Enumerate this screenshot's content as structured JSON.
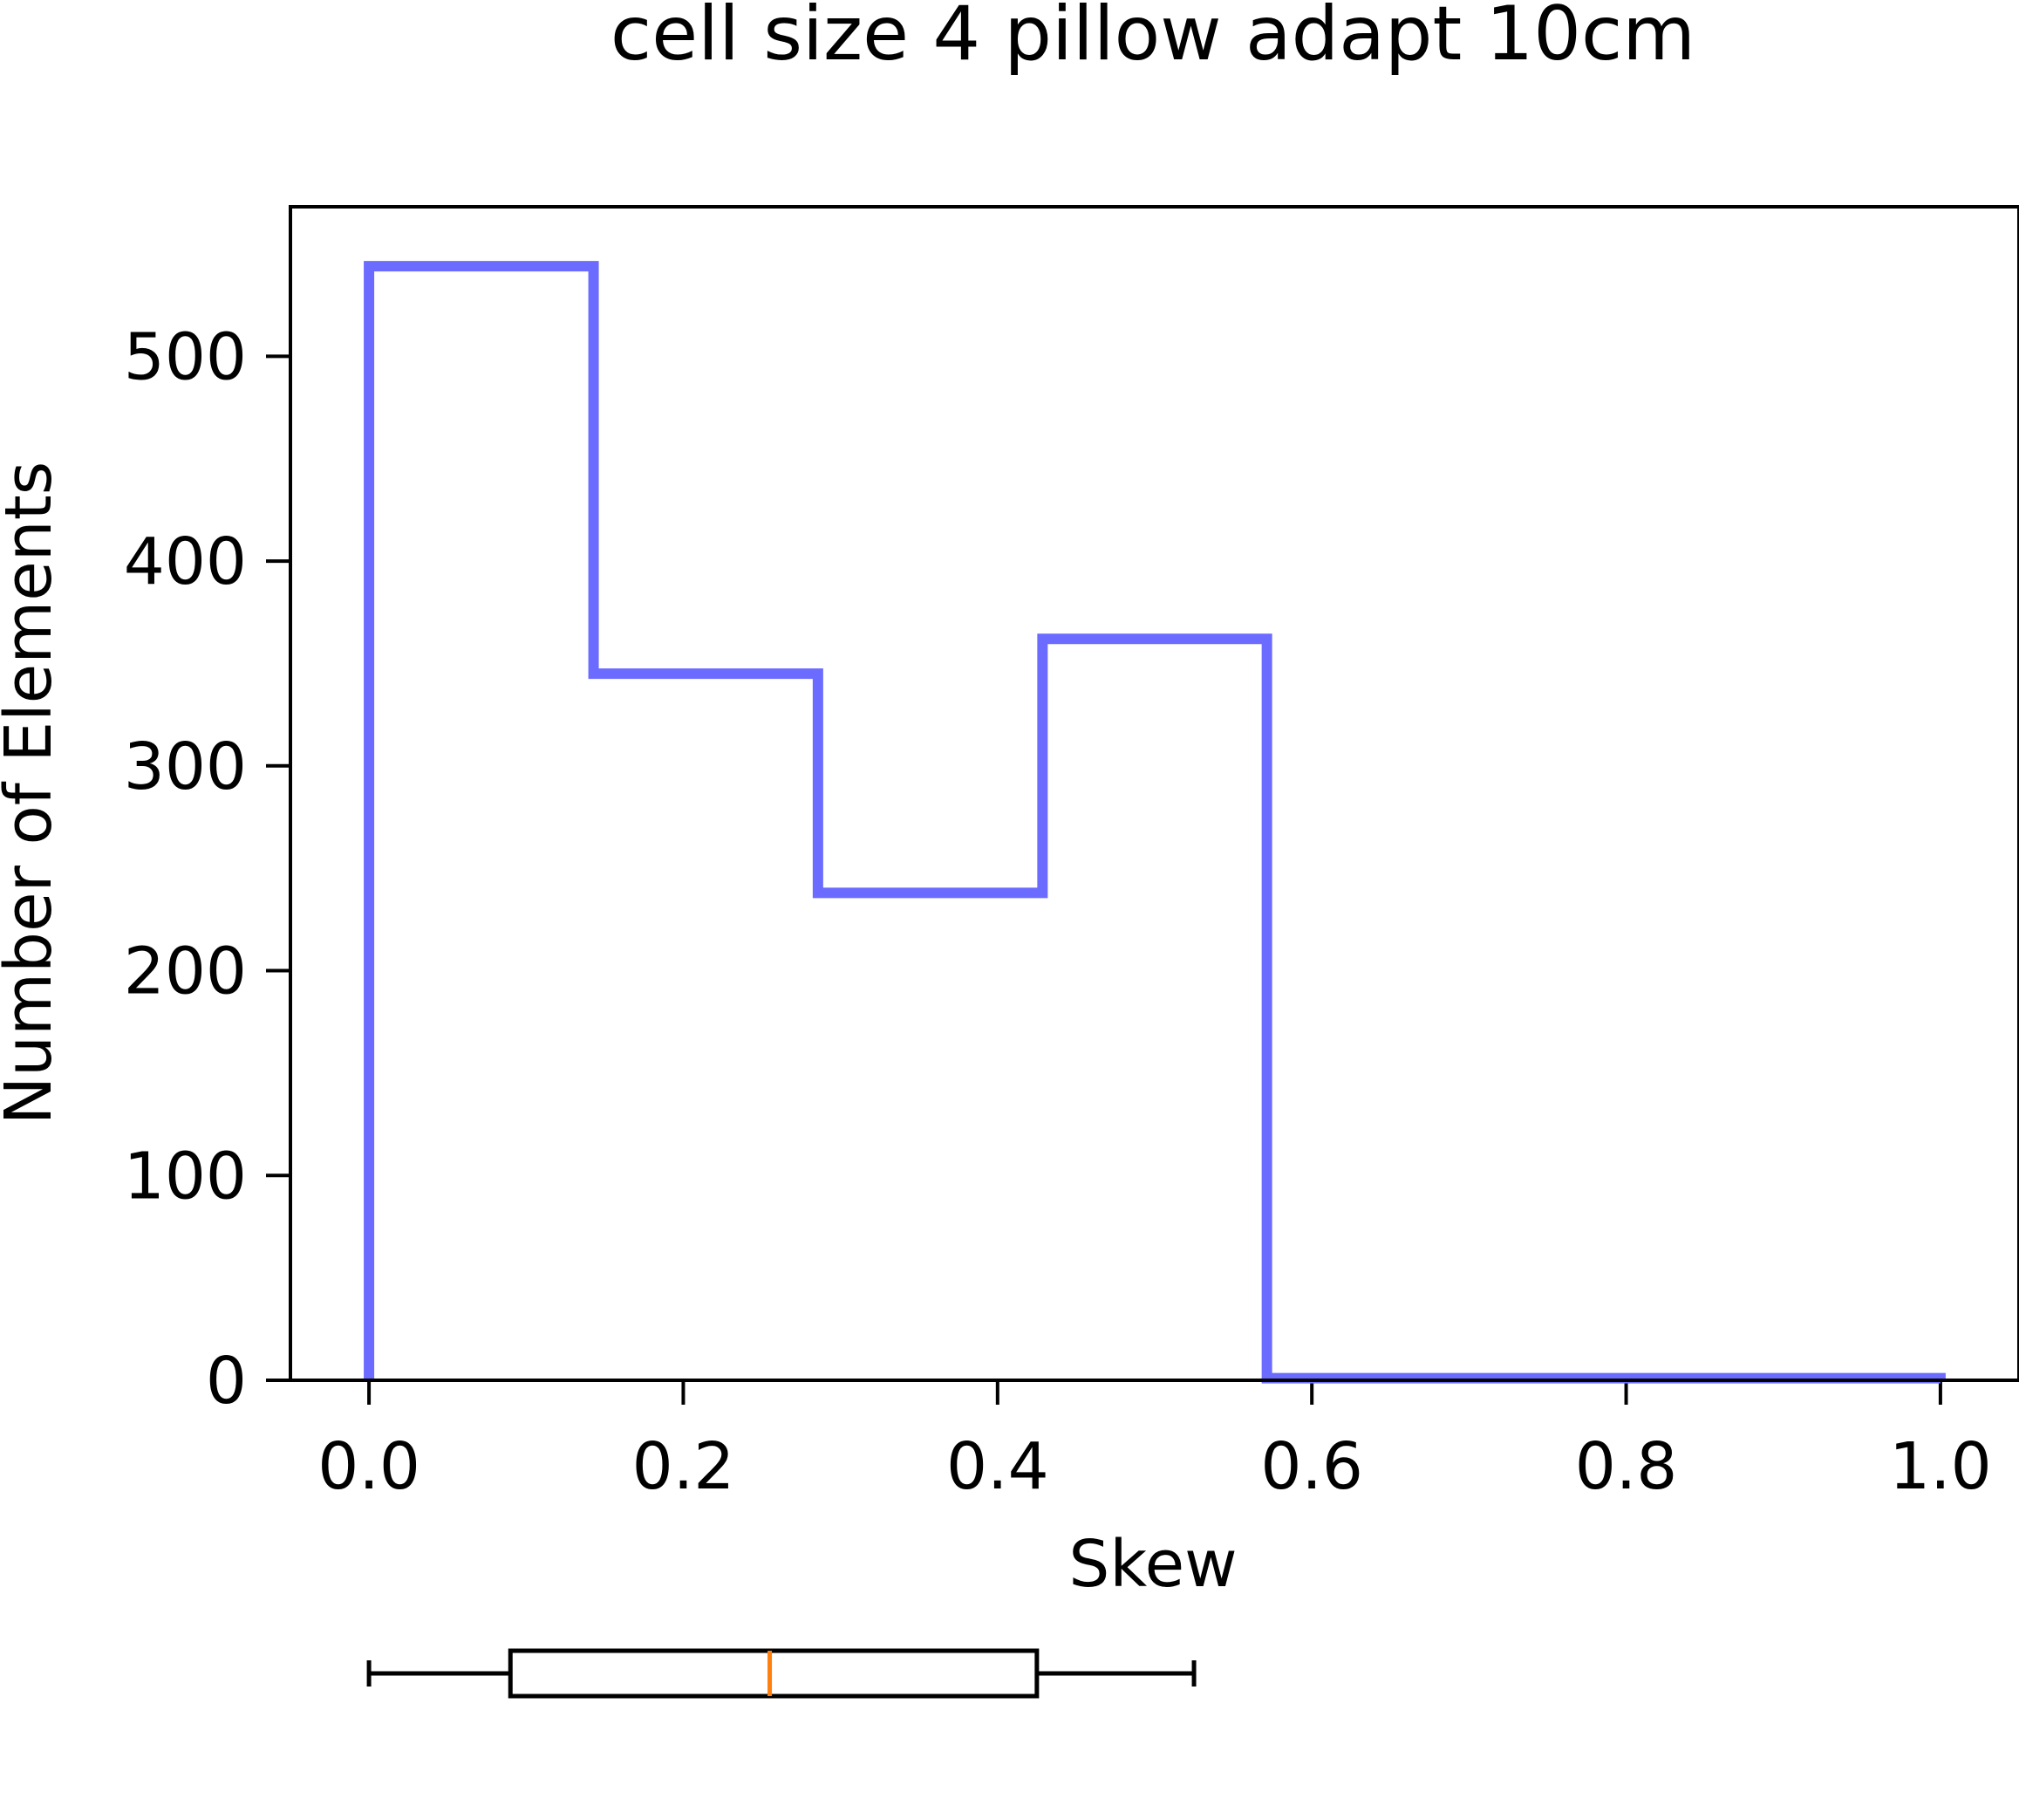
{
  "chart_data": {
    "type": "histogram-step",
    "title": "cell size 4 pillow adapt 10cm",
    "xlabel": "Skew",
    "ylabel": "Number of Elements",
    "xlim": [
      -0.05,
      1.05
    ],
    "ylim": [
      0,
      573
    ],
    "xticks": [
      0.0,
      0.2,
      0.4,
      0.6,
      0.8,
      1.0
    ],
    "xtick_labels": [
      "0.0",
      "0.2",
      "0.4",
      "0.6",
      "0.8",
      "1.0"
    ],
    "yticks": [
      0,
      100,
      200,
      300,
      400,
      500
    ],
    "ytick_labels": [
      "0",
      "100",
      "200",
      "300",
      "400",
      "500"
    ],
    "grid": false,
    "series": [
      {
        "bin_edges": [
          0.0,
          0.1429,
          0.2857,
          0.4286,
          0.5714,
          0.7143,
          0.8571,
          1.0
        ],
        "counts": [
          544,
          345,
          238,
          362,
          1,
          1,
          1
        ],
        "color": "#6b6bff"
      }
    ],
    "boxplot": {
      "whisker_low": 0.0,
      "q1": 0.09,
      "median": 0.255,
      "q3": 0.425,
      "whisker_high": 0.525,
      "box_color": "#000000",
      "median_color": "#ff7f0e"
    }
  }
}
